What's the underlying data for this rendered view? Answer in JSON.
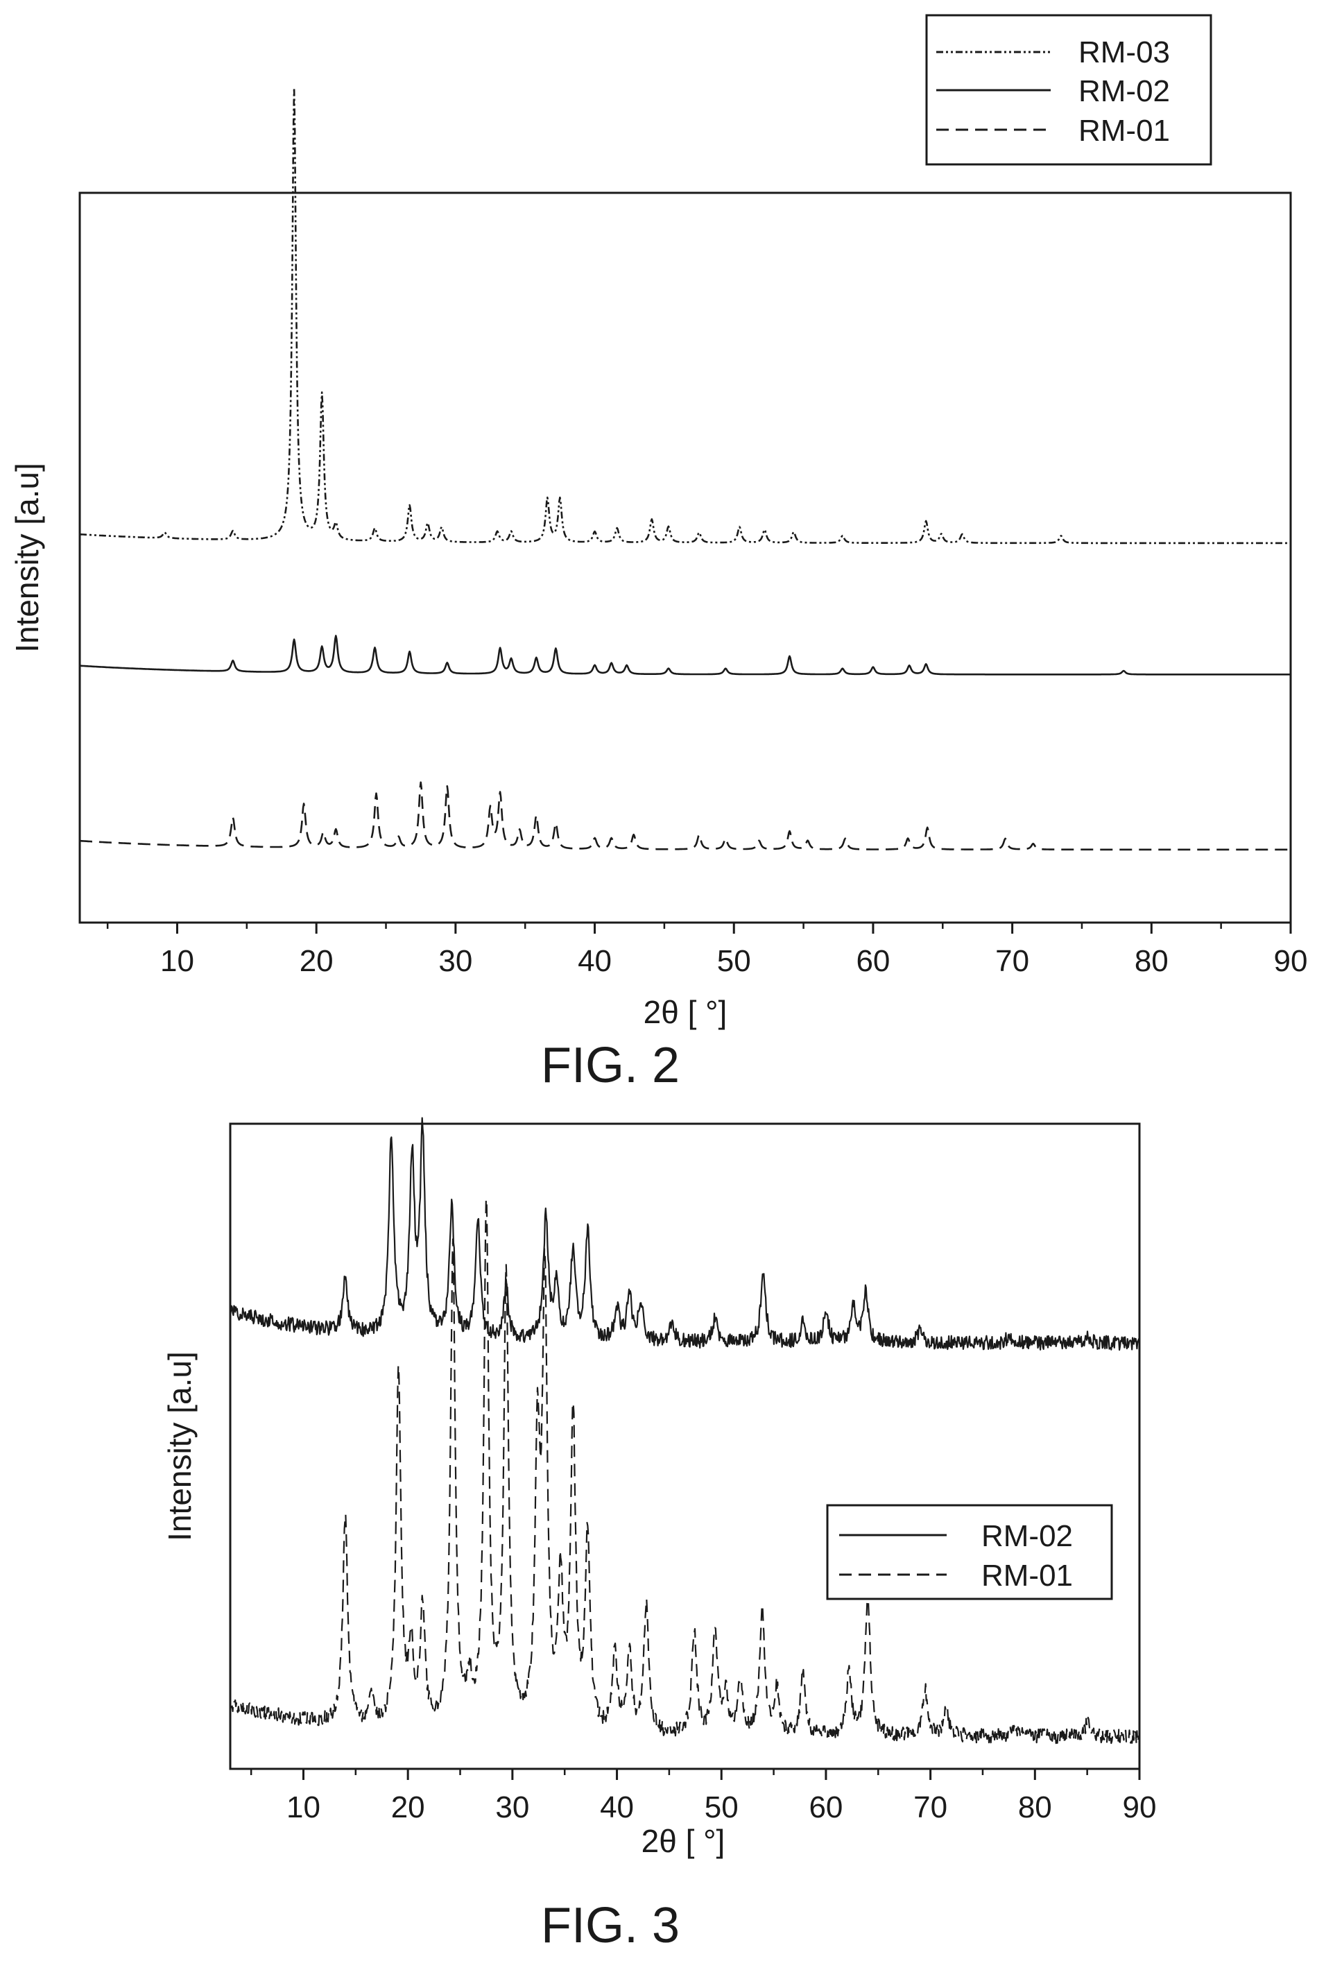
{
  "chart_data": [
    {
      "type": "line",
      "caption": "FIG. 2",
      "xlabel": "2θ [ °]",
      "ylabel": "Intensity [a.u]",
      "xlim": [
        3,
        90
      ],
      "x_ticks": [
        "10",
        "20",
        "30",
        "40",
        "50",
        "60",
        "70",
        "80",
        "90"
      ],
      "y_ticks_shown": false,
      "legend_position": "above-top-right",
      "series": [
        {
          "name": "RM-03",
          "line_style": "dash-dot-dot",
          "baseline": 0.52,
          "peaks": [
            [
              9.1,
              0.008
            ],
            [
              14.0,
              0.012
            ],
            [
              18.4,
              0.62
            ],
            [
              20.4,
              0.2
            ],
            [
              21.4,
              0.02
            ],
            [
              24.2,
              0.018
            ],
            [
              26.7,
              0.05
            ],
            [
              28.0,
              0.025
            ],
            [
              29.0,
              0.02
            ],
            [
              33.0,
              0.015
            ],
            [
              34.0,
              0.015
            ],
            [
              36.6,
              0.06
            ],
            [
              37.5,
              0.06
            ],
            [
              40.0,
              0.015
            ],
            [
              41.6,
              0.02
            ],
            [
              44.1,
              0.032
            ],
            [
              45.3,
              0.022
            ],
            [
              47.5,
              0.014
            ],
            [
              50.4,
              0.022
            ],
            [
              52.2,
              0.018
            ],
            [
              54.3,
              0.015
            ],
            [
              57.8,
              0.01
            ],
            [
              63.8,
              0.03
            ],
            [
              64.9,
              0.012
            ],
            [
              66.4,
              0.012
            ],
            [
              73.5,
              0.01
            ]
          ]
        },
        {
          "name": "RM-02",
          "line_style": "solid",
          "baseline": 0.34,
          "peaks": [
            [
              14.0,
              0.015
            ],
            [
              18.4,
              0.045
            ],
            [
              20.4,
              0.035
            ],
            [
              21.4,
              0.05
            ],
            [
              24.2,
              0.035
            ],
            [
              26.7,
              0.03
            ],
            [
              29.4,
              0.015
            ],
            [
              33.2,
              0.035
            ],
            [
              34.0,
              0.02
            ],
            [
              35.8,
              0.022
            ],
            [
              37.2,
              0.035
            ],
            [
              40.0,
              0.012
            ],
            [
              41.2,
              0.015
            ],
            [
              42.3,
              0.012
            ],
            [
              45.3,
              0.008
            ],
            [
              49.4,
              0.008
            ],
            [
              54.0,
              0.025
            ],
            [
              57.8,
              0.008
            ],
            [
              60.0,
              0.01
            ],
            [
              62.6,
              0.012
            ],
            [
              63.8,
              0.014
            ],
            [
              78.0,
              0.005
            ]
          ]
        },
        {
          "name": "RM-01",
          "line_style": "dashed",
          "baseline": 0.1,
          "peaks": [
            [
              14.0,
              0.04
            ],
            [
              19.1,
              0.06
            ],
            [
              20.5,
              0.02
            ],
            [
              21.4,
              0.025
            ],
            [
              24.3,
              0.075
            ],
            [
              25.9,
              0.015
            ],
            [
              27.5,
              0.09
            ],
            [
              29.4,
              0.085
            ],
            [
              32.5,
              0.055
            ],
            [
              33.2,
              0.075
            ],
            [
              34.6,
              0.025
            ],
            [
              35.8,
              0.045
            ],
            [
              37.2,
              0.035
            ],
            [
              40.0,
              0.015
            ],
            [
              41.2,
              0.015
            ],
            [
              42.8,
              0.02
            ],
            [
              47.5,
              0.02
            ],
            [
              49.4,
              0.015
            ],
            [
              51.8,
              0.012
            ],
            [
              54.0,
              0.025
            ],
            [
              55.3,
              0.012
            ],
            [
              58.0,
              0.015
            ],
            [
              62.5,
              0.015
            ],
            [
              63.9,
              0.03
            ],
            [
              69.5,
              0.015
            ],
            [
              71.5,
              0.008
            ]
          ]
        }
      ]
    },
    {
      "type": "line",
      "caption": "FIG. 3",
      "xlabel": "2θ [ °]",
      "ylabel": "Intensity [a.u]",
      "xlim": [
        3,
        90
      ],
      "x_ticks": [
        "10",
        "20",
        "30",
        "40",
        "50",
        "60",
        "70",
        "80",
        "90"
      ],
      "y_ticks_shown": false,
      "legend_position": "center-right",
      "series": [
        {
          "name": "RM-02",
          "line_style": "solid",
          "noisy": true,
          "baseline": 0.66,
          "peaks": [
            [
              14.0,
              0.08
            ],
            [
              18.4,
              0.3
            ],
            [
              20.4,
              0.27
            ],
            [
              21.4,
              0.31
            ],
            [
              24.2,
              0.2
            ],
            [
              26.7,
              0.18
            ],
            [
              29.4,
              0.08
            ],
            [
              33.2,
              0.19
            ],
            [
              34.2,
              0.08
            ],
            [
              35.8,
              0.14
            ],
            [
              37.2,
              0.17
            ],
            [
              40.0,
              0.05
            ],
            [
              41.2,
              0.07
            ],
            [
              42.3,
              0.06
            ],
            [
              45.3,
              0.03
            ],
            [
              49.4,
              0.04
            ],
            [
              54.0,
              0.11
            ],
            [
              57.8,
              0.03
            ],
            [
              60.0,
              0.05
            ],
            [
              62.6,
              0.06
            ],
            [
              63.8,
              0.08
            ],
            [
              69.0,
              0.02
            ],
            [
              77.5,
              0.01
            ],
            [
              85.0,
              0.01
            ]
          ]
        },
        {
          "name": "RM-01",
          "line_style": "dashed",
          "noisy": true,
          "baseline": 0.05,
          "peaks": [
            [
              14.0,
              0.32
            ],
            [
              16.5,
              0.04
            ],
            [
              19.1,
              0.55
            ],
            [
              20.3,
              0.12
            ],
            [
              21.4,
              0.18
            ],
            [
              24.3,
              0.74
            ],
            [
              25.9,
              0.06
            ],
            [
              27.5,
              0.8
            ],
            [
              29.4,
              0.7
            ],
            [
              32.4,
              0.42
            ],
            [
              33.1,
              0.68
            ],
            [
              34.6,
              0.22
            ],
            [
              35.8,
              0.49
            ],
            [
              37.2,
              0.3
            ],
            [
              39.8,
              0.12
            ],
            [
              41.2,
              0.12
            ],
            [
              42.8,
              0.2
            ],
            [
              47.4,
              0.16
            ],
            [
              49.4,
              0.16
            ],
            [
              50.4,
              0.06
            ],
            [
              51.8,
              0.08
            ],
            [
              53.9,
              0.2
            ],
            [
              55.3,
              0.07
            ],
            [
              57.8,
              0.1
            ],
            [
              62.2,
              0.1
            ],
            [
              64.0,
              0.22
            ],
            [
              69.5,
              0.07
            ],
            [
              71.5,
              0.04
            ],
            [
              78.0,
              0.02
            ],
            [
              85.0,
              0.02
            ]
          ]
        }
      ]
    }
  ]
}
